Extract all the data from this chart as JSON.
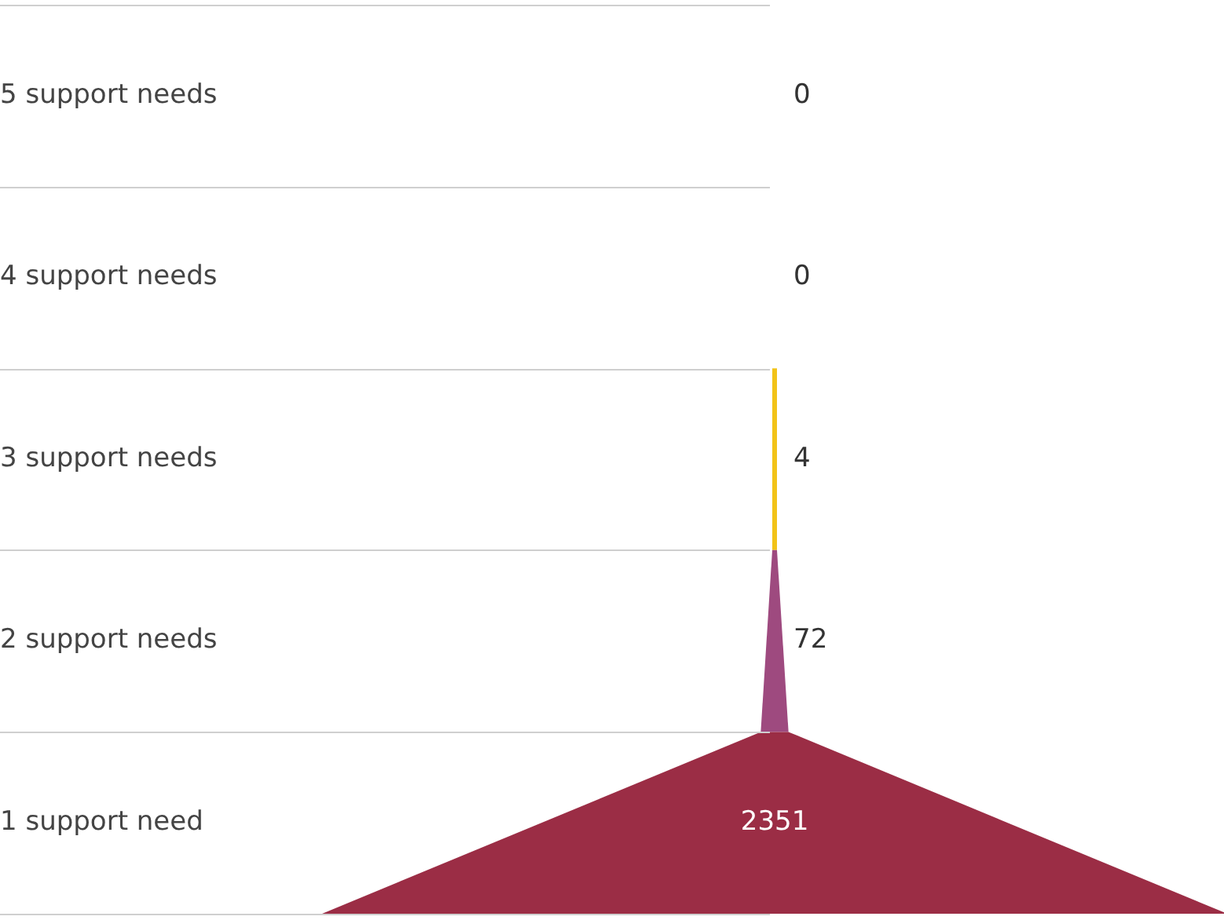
{
  "chart_data": {
    "type": "other",
    "categories": [
      "5 support needs",
      "4 support needs",
      "3 support needs",
      "2 support needs",
      "1 support need"
    ],
    "values": [
      0,
      0,
      4,
      72,
      2351
    ],
    "colors": [
      null,
      null,
      "#f2c318",
      "#9e4a7f",
      "#9b2d45"
    ],
    "data_labels": true
  }
}
